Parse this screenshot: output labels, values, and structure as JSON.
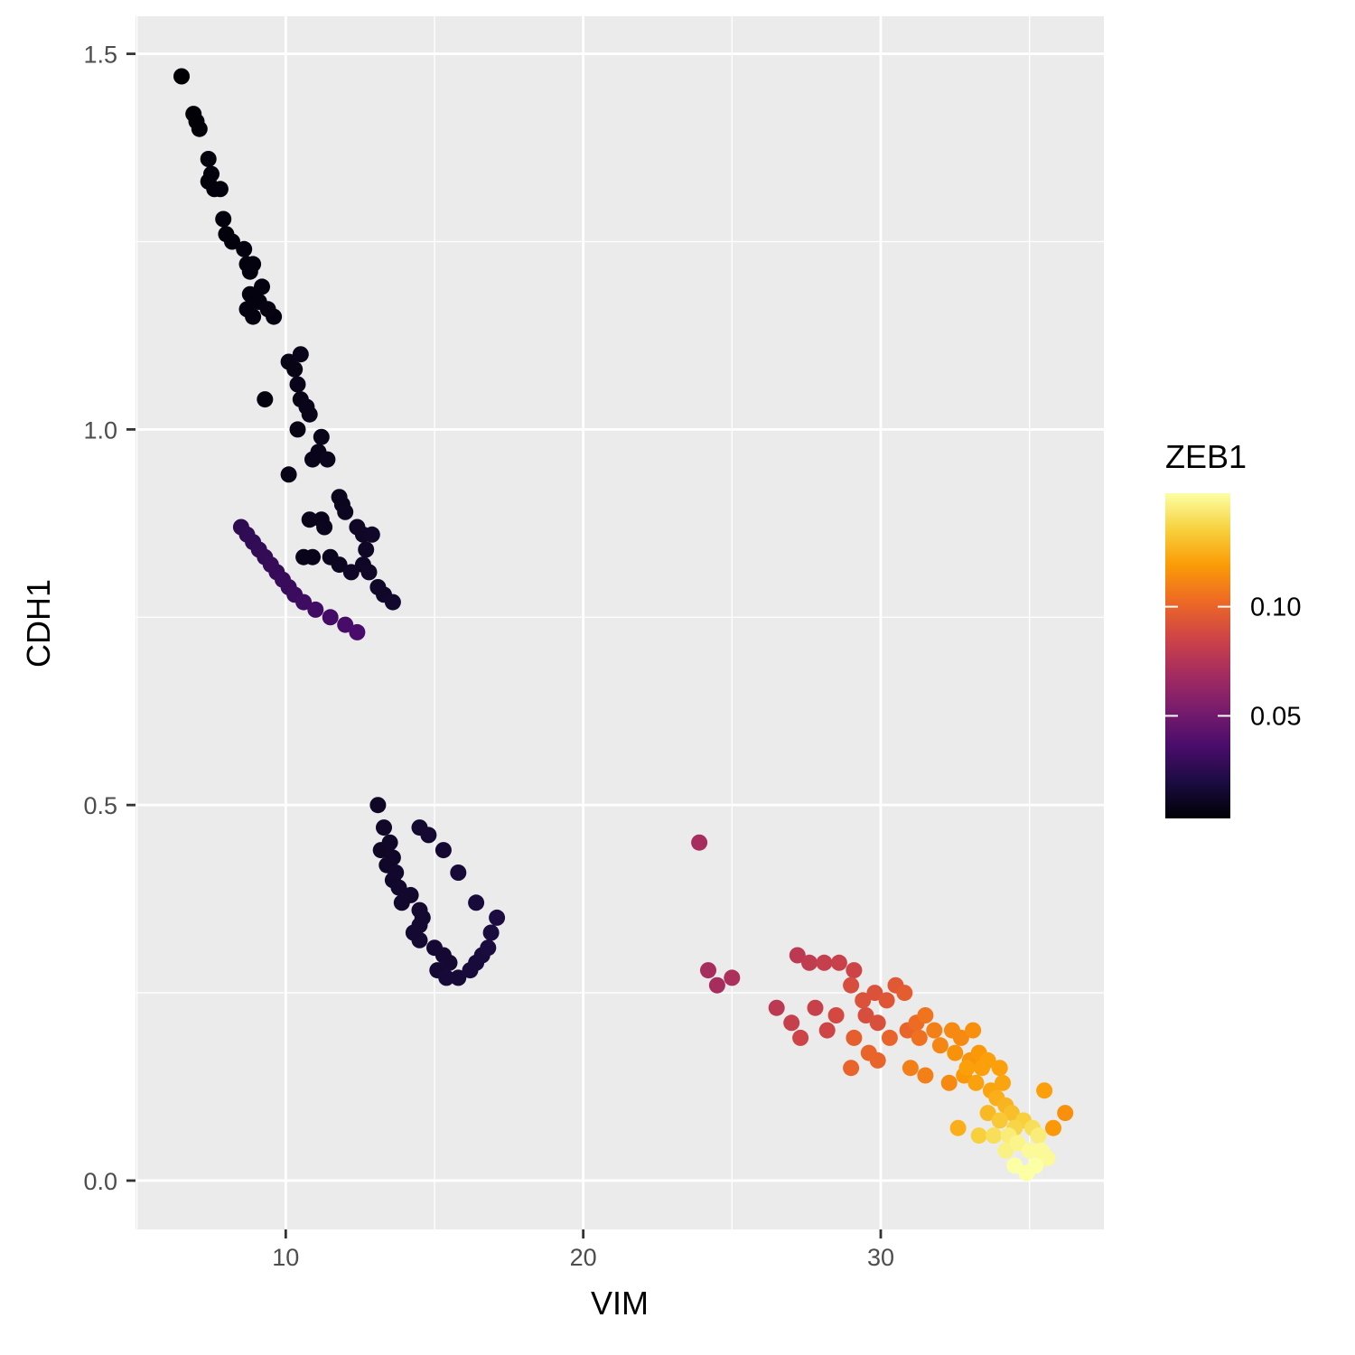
{
  "chart_data": {
    "type": "scatter",
    "xlabel": "VIM",
    "ylabel": "CDH1",
    "xlim": [
      4.95,
      37.5
    ],
    "ylim": [
      -0.065,
      1.55
    ],
    "x_ticks": [
      10,
      20,
      30
    ],
    "x_tick_labels": [
      "10",
      "20",
      "30"
    ],
    "x_minor_ticks": [
      5,
      15,
      25,
      35
    ],
    "y_ticks": [
      0.0,
      0.5,
      1.0,
      1.5
    ],
    "y_tick_labels": [
      "0.0",
      "0.5",
      "1.0",
      "1.5"
    ],
    "y_minor_ticks": [
      0.25,
      0.75,
      1.25
    ],
    "grid": true,
    "panel_background": "#ebebeb",
    "color_legend": {
      "title": "ZEB1",
      "position": "right",
      "range": [
        0.003,
        0.152
      ],
      "ticks": [
        0.05,
        0.1
      ],
      "tick_labels": [
        "0.05",
        "0.10"
      ],
      "colormap": "inferno",
      "colors": [
        "#000004",
        "#1b0c41",
        "#4a0c6b",
        "#781c6d",
        "#a52c60",
        "#cf4446",
        "#ed6925",
        "#fb9b06",
        "#f7d13d",
        "#fcffa4"
      ]
    },
    "points": [
      [
        6.5,
        1.47,
        0.003
      ],
      [
        6.9,
        1.42,
        0.004
      ],
      [
        7.0,
        1.41,
        0.004
      ],
      [
        7.1,
        1.4,
        0.004
      ],
      [
        7.4,
        1.36,
        0.005
      ],
      [
        7.5,
        1.34,
        0.005
      ],
      [
        7.4,
        1.33,
        0.004
      ],
      [
        7.6,
        1.32,
        0.005
      ],
      [
        7.8,
        1.32,
        0.005
      ],
      [
        7.9,
        1.28,
        0.005
      ],
      [
        8.0,
        1.26,
        0.005
      ],
      [
        8.2,
        1.25,
        0.005
      ],
      [
        8.6,
        1.24,
        0.006
      ],
      [
        8.7,
        1.22,
        0.005
      ],
      [
        8.9,
        1.22,
        0.006
      ],
      [
        8.8,
        1.21,
        0.006
      ],
      [
        9.2,
        1.19,
        0.006
      ],
      [
        8.8,
        1.18,
        0.006
      ],
      [
        9.1,
        1.17,
        0.006
      ],
      [
        8.7,
        1.16,
        0.006
      ],
      [
        9.4,
        1.16,
        0.007
      ],
      [
        8.9,
        1.15,
        0.006
      ],
      [
        9.6,
        1.15,
        0.006
      ],
      [
        9.3,
        1.04,
        0.006
      ],
      [
        10.1,
        1.09,
        0.008
      ],
      [
        10.3,
        1.08,
        0.008
      ],
      [
        10.5,
        1.1,
        0.009
      ],
      [
        10.4,
        1.06,
        0.009
      ],
      [
        10.5,
        1.04,
        0.008
      ],
      [
        10.7,
        1.03,
        0.009
      ],
      [
        10.8,
        1.02,
        0.009
      ],
      [
        10.4,
        1.0,
        0.008
      ],
      [
        11.2,
        0.99,
        0.009
      ],
      [
        11.1,
        0.97,
        0.009
      ],
      [
        10.9,
        0.96,
        0.009
      ],
      [
        11.4,
        0.96,
        0.01
      ],
      [
        10.1,
        0.94,
        0.008
      ],
      [
        11.8,
        0.91,
        0.01
      ],
      [
        11.9,
        0.9,
        0.01
      ],
      [
        12.0,
        0.89,
        0.011
      ],
      [
        10.8,
        0.88,
        0.009
      ],
      [
        11.2,
        0.88,
        0.009
      ],
      [
        11.3,
        0.87,
        0.01
      ],
      [
        12.4,
        0.87,
        0.012
      ],
      [
        12.6,
        0.86,
        0.012
      ],
      [
        12.9,
        0.86,
        0.013
      ],
      [
        12.7,
        0.84,
        0.012
      ],
      [
        12.6,
        0.82,
        0.012
      ],
      [
        11.5,
        0.83,
        0.01
      ],
      [
        11.8,
        0.82,
        0.011
      ],
      [
        12.2,
        0.81,
        0.012
      ],
      [
        10.6,
        0.83,
        0.009
      ],
      [
        10.9,
        0.83,
        0.009
      ],
      [
        12.8,
        0.81,
        0.013
      ],
      [
        13.1,
        0.79,
        0.013
      ],
      [
        13.3,
        0.78,
        0.013
      ],
      [
        13.6,
        0.77,
        0.014
      ],
      [
        8.5,
        0.87,
        0.026
      ],
      [
        8.7,
        0.86,
        0.027
      ],
      [
        8.9,
        0.85,
        0.027
      ],
      [
        9.1,
        0.84,
        0.028
      ],
      [
        9.3,
        0.83,
        0.028
      ],
      [
        9.5,
        0.82,
        0.029
      ],
      [
        9.7,
        0.81,
        0.029
      ],
      [
        9.9,
        0.8,
        0.03
      ],
      [
        10.1,
        0.79,
        0.03
      ],
      [
        10.3,
        0.78,
        0.031
      ],
      [
        10.6,
        0.77,
        0.032
      ],
      [
        11.0,
        0.76,
        0.033
      ],
      [
        11.5,
        0.75,
        0.034
      ],
      [
        12.0,
        0.74,
        0.035
      ],
      [
        12.4,
        0.73,
        0.036
      ],
      [
        13.3,
        0.47,
        0.013
      ],
      [
        13.5,
        0.45,
        0.013
      ],
      [
        13.2,
        0.44,
        0.012
      ],
      [
        13.6,
        0.43,
        0.013
      ],
      [
        13.4,
        0.42,
        0.013
      ],
      [
        13.7,
        0.41,
        0.014
      ],
      [
        13.6,
        0.4,
        0.013
      ],
      [
        13.8,
        0.39,
        0.014
      ],
      [
        14.2,
        0.38,
        0.014
      ],
      [
        13.9,
        0.37,
        0.014
      ],
      [
        14.5,
        0.36,
        0.015
      ],
      [
        14.6,
        0.35,
        0.015
      ],
      [
        14.5,
        0.34,
        0.015
      ],
      [
        14.3,
        0.33,
        0.015
      ],
      [
        14.5,
        0.32,
        0.015
      ],
      [
        15.0,
        0.31,
        0.016
      ],
      [
        15.3,
        0.3,
        0.016
      ],
      [
        15.5,
        0.29,
        0.016
      ],
      [
        15.1,
        0.28,
        0.016
      ],
      [
        15.4,
        0.27,
        0.017
      ],
      [
        15.8,
        0.27,
        0.017
      ],
      [
        16.2,
        0.28,
        0.018
      ],
      [
        16.4,
        0.29,
        0.018
      ],
      [
        16.6,
        0.3,
        0.018
      ],
      [
        16.8,
        0.31,
        0.019
      ],
      [
        16.9,
        0.33,
        0.019
      ],
      [
        17.1,
        0.35,
        0.02
      ],
      [
        16.4,
        0.37,
        0.018
      ],
      [
        15.8,
        0.41,
        0.017
      ],
      [
        15.3,
        0.44,
        0.016
      ],
      [
        14.8,
        0.46,
        0.016
      ],
      [
        13.1,
        0.5,
        0.012
      ],
      [
        14.5,
        0.47,
        0.015
      ],
      [
        26.5,
        0.23,
        0.078
      ],
      [
        27.0,
        0.21,
        0.082
      ],
      [
        27.3,
        0.19,
        0.085
      ],
      [
        27.8,
        0.23,
        0.083
      ],
      [
        28.5,
        0.22,
        0.088
      ],
      [
        28.2,
        0.2,
        0.086
      ],
      [
        29.0,
        0.26,
        0.09
      ],
      [
        29.4,
        0.24,
        0.092
      ],
      [
        29.8,
        0.25,
        0.092
      ],
      [
        30.2,
        0.24,
        0.094
      ],
      [
        29.5,
        0.22,
        0.09
      ],
      [
        29.9,
        0.21,
        0.091
      ],
      [
        30.5,
        0.26,
        0.095
      ],
      [
        30.8,
        0.25,
        0.097
      ],
      [
        29.1,
        0.19,
        0.098
      ],
      [
        29.6,
        0.17,
        0.1
      ],
      [
        30.3,
        0.19,
        0.1
      ],
      [
        30.9,
        0.2,
        0.1
      ],
      [
        31.2,
        0.21,
        0.103
      ],
      [
        31.5,
        0.22,
        0.106
      ],
      [
        31.3,
        0.19,
        0.105
      ],
      [
        31.8,
        0.2,
        0.11
      ],
      [
        32.0,
        0.18,
        0.112
      ],
      [
        32.4,
        0.2,
        0.113
      ],
      [
        32.7,
        0.19,
        0.113
      ],
      [
        33.1,
        0.2,
        0.115
      ],
      [
        32.5,
        0.17,
        0.116
      ],
      [
        33.0,
        0.16,
        0.117
      ],
      [
        33.3,
        0.17,
        0.118
      ],
      [
        32.8,
        0.14,
        0.118
      ],
      [
        32.3,
        0.13,
        0.113
      ],
      [
        32.9,
        0.15,
        0.12
      ],
      [
        33.4,
        0.15,
        0.12
      ],
      [
        33.6,
        0.16,
        0.12
      ],
      [
        34.0,
        0.15,
        0.12
      ],
      [
        33.2,
        0.13,
        0.121
      ],
      [
        33.7,
        0.12,
        0.122
      ],
      [
        34.1,
        0.13,
        0.122
      ],
      [
        33.9,
        0.11,
        0.125
      ],
      [
        34.2,
        0.1,
        0.127
      ],
      [
        34.4,
        0.09,
        0.13
      ],
      [
        33.6,
        0.09,
        0.128
      ],
      [
        34.0,
        0.08,
        0.133
      ],
      [
        34.5,
        0.07,
        0.137
      ],
      [
        34.8,
        0.08,
        0.135
      ],
      [
        35.1,
        0.07,
        0.14
      ],
      [
        35.3,
        0.06,
        0.145
      ],
      [
        34.6,
        0.05,
        0.148
      ],
      [
        35.0,
        0.04,
        0.15
      ],
      [
        35.4,
        0.04,
        0.15
      ],
      [
        35.6,
        0.03,
        0.15
      ],
      [
        34.2,
        0.04,
        0.147
      ],
      [
        34.5,
        0.02,
        0.152
      ],
      [
        34.9,
        0.01,
        0.152
      ],
      [
        35.2,
        0.02,
        0.152
      ],
      [
        35.5,
        0.12,
        0.12
      ],
      [
        36.2,
        0.09,
        0.115
      ],
      [
        35.8,
        0.07,
        0.118
      ],
      [
        32.6,
        0.07,
        0.125
      ],
      [
        33.3,
        0.06,
        0.135
      ],
      [
        33.8,
        0.06,
        0.14
      ],
      [
        34.3,
        0.06,
        0.145
      ],
      [
        27.2,
        0.3,
        0.078
      ],
      [
        27.6,
        0.29,
        0.08
      ],
      [
        28.1,
        0.29,
        0.082
      ],
      [
        28.6,
        0.29,
        0.083
      ],
      [
        29.1,
        0.28,
        0.085
      ],
      [
        23.9,
        0.45,
        0.07
      ],
      [
        24.2,
        0.28,
        0.07
      ],
      [
        24.5,
        0.26,
        0.07
      ],
      [
        25.0,
        0.27,
        0.072
      ],
      [
        29.9,
        0.16,
        0.1
      ],
      [
        29.0,
        0.15,
        0.1
      ],
      [
        31.0,
        0.15,
        0.11
      ],
      [
        31.5,
        0.14,
        0.11
      ]
    ]
  }
}
